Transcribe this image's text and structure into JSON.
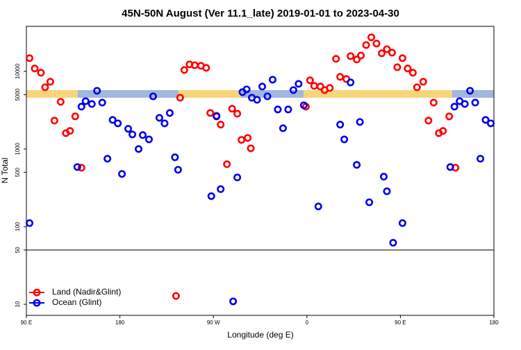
{
  "chart_data": {
    "type": "scatter",
    "title": "45N-50N August (Ver 11.1_late)   2019-01-01 to 2023-04-30",
    "x_label": "Longitude (deg E)",
    "y_label": "N Total",
    "log_y": true,
    "legend": "bottom-left",
    "reference_line": 50,
    "xlim": [
      90,
      540
    ],
    "xticks": [
      {
        "value": 90,
        "label": "90 E"
      },
      {
        "value": 180,
        "label": "180"
      },
      {
        "value": 270,
        "label": "90 W"
      },
      {
        "value": 360,
        "label": "0"
      },
      {
        "value": 450,
        "label": "90 E"
      },
      {
        "value": 540,
        "label": "180"
      }
    ],
    "ylim": [
      7.2,
      38000
    ],
    "yticks": [
      10,
      50,
      100,
      500,
      1000,
      5000,
      10000
    ],
    "series": [
      {
        "name": "Land (Nadir&Glint)",
        "color": "#ff0000",
        "x": [
          93,
          98,
          104,
          108,
          113,
          117,
          123,
          128,
          132,
          137,
          143,
          238,
          242,
          247,
          252,
          258,
          263,
          267,
          273,
          277,
          283,
          288,
          293,
          297,
          303,
          306,
          359,
          363,
          367,
          373,
          377,
          382,
          388,
          392,
          398,
          402,
          408,
          412,
          417,
          422,
          427,
          432,
          437,
          442,
          447,
          452,
          457,
          462,
          466,
          472,
          477,
          482,
          487,
          491,
          497,
          503,
          234
        ],
        "values": [
          14800,
          10900,
          9600,
          6240,
          7350,
          2320,
          4050,
          1600,
          1710,
          2630,
          574,
          4580,
          10400,
          12300,
          12000,
          11800,
          11100,
          2910,
          2680,
          2060,
          637,
          3300,
          2850,
          1310,
          1390,
          1020,
          3510,
          7660,
          6500,
          6370,
          5740,
          6110,
          14500,
          8490,
          7980,
          15700,
          14200,
          16000,
          21800,
          27400,
          22800,
          17100,
          19300,
          17400,
          11300,
          14800,
          10900,
          9600,
          6240,
          7350,
          2320,
          3960,
          1600,
          1710,
          2630,
          574,
          12.8
        ]
      },
      {
        "name": "Ocean (Glint)",
        "color": "#0000ee",
        "x": [
          93,
          139,
          143,
          147,
          153,
          158,
          163,
          168,
          173,
          178,
          182,
          188,
          192,
          198,
          202,
          208,
          212,
          218,
          223,
          228,
          233,
          236,
          268,
          273,
          277,
          293,
          298,
          302,
          307,
          312,
          317,
          322,
          327,
          332,
          337,
          342,
          347,
          352,
          357,
          371,
          392,
          396,
          402,
          408,
          411,
          420,
          434,
          437,
          443,
          452,
          498,
          502,
          507,
          512,
          517,
          522,
          527,
          532,
          537,
          289
        ],
        "values": [
          111,
          586,
          3510,
          4130,
          3800,
          5620,
          3960,
          750,
          2370,
          2140,
          477,
          1820,
          1540,
          1000,
          1510,
          1330,
          4770,
          2520,
          2140,
          2910,
          782,
          540,
          247,
          2630,
          304,
          430,
          5400,
          5860,
          4580,
          4300,
          6370,
          4770,
          7810,
          3230,
          1850,
          3230,
          5740,
          6900,
          3660,
          182,
          2060,
          1330,
          7200,
          624,
          2230,
          206,
          440,
          285,
          62,
          111,
          586,
          3510,
          4130,
          3800,
          5620,
          3960,
          750,
          2370,
          2140,
          10.9
        ]
      }
    ]
  }
}
